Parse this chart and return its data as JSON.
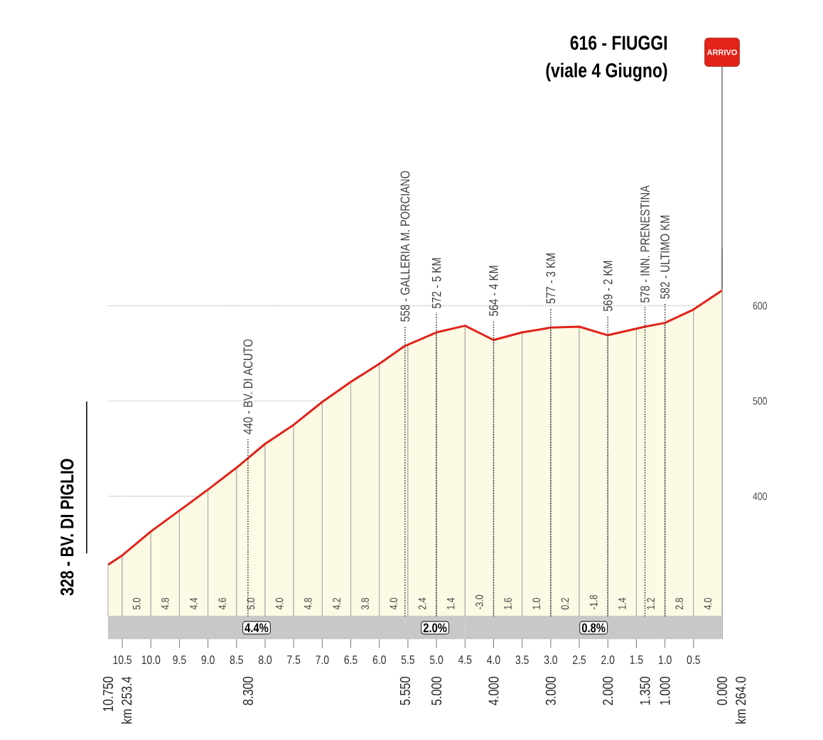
{
  "chart_data": {
    "type": "line",
    "title": "616 - FIUGGI",
    "subtitle": "(viale 4 Giugno)",
    "x": [
      10.75,
      10.5,
      10,
      9.5,
      9,
      8.5,
      8.3,
      8,
      7.5,
      7,
      6.5,
      6,
      5.55,
      5.5,
      5,
      4.5,
      4,
      3.5,
      3,
      2.5,
      2,
      1.5,
      1.35,
      1,
      0.5,
      0
    ],
    "values": [
      328,
      338,
      363,
      385,
      407,
      430,
      440,
      455,
      475,
      499,
      520,
      539,
      558,
      559,
      572,
      579,
      564,
      572,
      577,
      578,
      569,
      576,
      578,
      582,
      596,
      616
    ],
    "color": "#e2231a",
    "xlim": [
      10.75,
      0
    ],
    "ylim": [
      250,
      660
    ],
    "xticks": [
      10.5,
      {
        "value": 10,
        "label": "10.0"
      },
      9.5,
      {
        "value": 9,
        "label": "9.0"
      },
      8.5,
      {
        "value": 8,
        "label": "8.0"
      },
      7.5,
      {
        "value": 7,
        "label": "7.0"
      },
      6.5,
      {
        "value": 6,
        "label": "6.0"
      },
      5.5,
      {
        "value": 5,
        "label": "5.0"
      },
      4.5,
      {
        "value": 4,
        "label": "4.0"
      },
      3.5,
      {
        "value": 3,
        "label": "3.0"
      },
      2.5,
      {
        "value": 2,
        "label": "2.0"
      },
      1.5,
      {
        "value": 1,
        "label": "1.0"
      },
      0.5
    ],
    "yticks": [
      400,
      500,
      600
    ],
    "x2lim": [
      10.75,
      0
    ],
    "x2ticks": [
      {
        "value": 10.75,
        "label": "10.750"
      },
      {
        "value": 8.3,
        "label": "8.300"
      },
      {
        "value": 5.55,
        "label": "5.550"
      },
      {
        "value": 5,
        "label": "5.000"
      },
      {
        "value": 4,
        "label": "4.000"
      },
      {
        "value": 3,
        "label": "3.000"
      },
      {
        "value": 2,
        "label": "2.000"
      },
      {
        "value": 1.35,
        "label": "1.350"
      },
      {
        "value": 1,
        "label": "1.000"
      },
      {
        "value": 0,
        "label": "0.000"
      }
    ],
    "grid": "y",
    "ref_lines": [
      {
        "axis": "x",
        "value": 8.3,
        "label": "440 - BV. DI ACUTO",
        "line_style": "dotted"
      },
      {
        "axis": "x",
        "value": 5.55,
        "label": "558 - GALLERIA M. PORCIANO",
        "line_style": "dotted"
      },
      {
        "axis": "x",
        "value": 5,
        "label": "572 - 5 KM",
        "line_style": "dotted"
      },
      {
        "axis": "x",
        "value": 4,
        "label": "564 - 4 KM",
        "line_style": "dotted"
      },
      {
        "axis": "x",
        "value": 3,
        "label": "577 - 3 KM",
        "line_style": "dotted"
      },
      {
        "axis": "x",
        "value": 2,
        "label": "569 - 2 KM",
        "line_style": "dotted"
      },
      {
        "axis": "x",
        "value": 1.35,
        "label": "578 - INN. PRENESTINA",
        "line_style": "dotted"
      },
      {
        "axis": "x",
        "value": 1,
        "label": "582 - ULTIMO KM",
        "line_style": "dotted"
      },
      {
        "axis": "x",
        "value": 0,
        "label": "ARRIVO",
        "line_style": "solid"
      }
    ],
    "bands": [
      {
        "axis": "x",
        "from": 10.75,
        "to": 10.5,
        "color": "#fcf9e4"
      },
      {
        "axis": "x",
        "from": 10.5,
        "to": 10,
        "label": "5.0",
        "color": "#fcf9e4"
      },
      {
        "axis": "x",
        "from": 10,
        "to": 9.5,
        "label": "4.8",
        "color": "#fcf9e4"
      },
      {
        "axis": "x",
        "from": 9.5,
        "to": 9,
        "label": "4.4",
        "color": "#fcf9e4"
      },
      {
        "axis": "x",
        "from": 9,
        "to": 8.5,
        "label": "4.6",
        "color": "#fcf9e4"
      },
      {
        "axis": "x",
        "from": 8.5,
        "to": 8,
        "label": "5.0",
        "color": "#fcf9e4"
      },
      {
        "axis": "x",
        "from": 8,
        "to": 7.5,
        "label": "4.0",
        "color": "#fcf9e4"
      },
      {
        "axis": "x",
        "from": 7.5,
        "to": 7,
        "label": "4.8",
        "color": "#fcf9e4"
      },
      {
        "axis": "x",
        "from": 7,
        "to": 6.5,
        "label": "4.2",
        "color": "#fcf9e4"
      },
      {
        "axis": "x",
        "from": 6.5,
        "to": 6,
        "label": "3.8",
        "color": "#fcf9e4"
      },
      {
        "axis": "x",
        "from": 6,
        "to": 5.5,
        "label": "4.0",
        "color": "#fcf9e4"
      },
      {
        "axis": "x",
        "from": 5.5,
        "to": 5,
        "label": "2.4",
        "color": "#fcf9e4"
      },
      {
        "axis": "x",
        "from": 5,
        "to": 4.5,
        "label": "1.4",
        "color": "#fcf9e4"
      },
      {
        "axis": "x",
        "from": 4.5,
        "to": 4,
        "label": "-3.0",
        "color": "#fcf9e4"
      },
      {
        "axis": "x",
        "from": 4,
        "to": 3.5,
        "label": "1.6",
        "color": "#fcf9e4"
      },
      {
        "axis": "x",
        "from": 3.5,
        "to": 3,
        "label": "1.0",
        "color": "#fcf9e4"
      },
      {
        "axis": "x",
        "from": 3,
        "to": 2.5,
        "label": "0.2",
        "color": "#fcf9e4"
      },
      {
        "axis": "x",
        "from": 2.5,
        "to": 2,
        "label": "-1.8",
        "color": "#fcf9e4"
      },
      {
        "axis": "x",
        "from": 2,
        "to": 1.5,
        "label": "1.4",
        "color": "#fcf9e4"
      },
      {
        "axis": "x",
        "from": 1.5,
        "to": 1,
        "label": "1.2",
        "color": "#fcf9e4"
      },
      {
        "axis": "x",
        "from": 1,
        "to": 0.5,
        "label": "2.8",
        "color": "#fcf9e4"
      },
      {
        "axis": "x",
        "from": 0.5,
        "to": 0,
        "label": "4.0",
        "color": "#fcf9e4"
      },
      {
        "axis": "x",
        "from": 10.75,
        "to": 5.55,
        "label": "4.4%",
        "color": "#c8c8c8"
      },
      {
        "axis": "x",
        "from": 5.55,
        "to": 4.5,
        "label": "2.0%",
        "color": "#c8c8c8"
      },
      {
        "axis": "x",
        "from": 4.5,
        "to": 0,
        "label": "0.8%",
        "color": "#c8c8c8"
      }
    ],
    "annotations": [
      {
        "text": "328 - BV. DI PIGLIO",
        "x": 10.75,
        "y": 328
      },
      "km 253.4",
      "km 264.0"
    ]
  }
}
